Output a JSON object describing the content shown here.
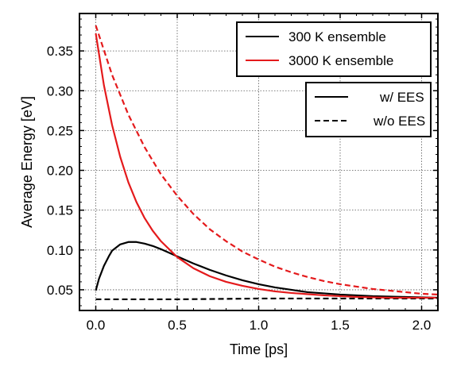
{
  "chart_data": {
    "type": "line",
    "title": "",
    "xlabel": "Time [ps]",
    "ylabel": "Average Energy [eV]",
    "xlim": [
      -0.1,
      2.1
    ],
    "ylim": [
      0.024,
      0.397
    ],
    "xticks": [
      0.0,
      0.5,
      1.0,
      1.5,
      2.0
    ],
    "xtick_labels": [
      "0.0",
      "0.5",
      "1.0",
      "1.5",
      "2.0"
    ],
    "yticks": [
      0.05,
      0.1,
      0.15,
      0.2,
      0.25,
      0.3,
      0.35
    ],
    "ytick_labels": [
      "0.05",
      "0.10",
      "0.15",
      "0.20",
      "0.25",
      "0.30",
      "0.35"
    ],
    "grid": true,
    "grid_style": "dotted",
    "legends": [
      {
        "placement": "top-right",
        "entries": [
          {
            "label": "300 K ensemble",
            "color": "#000000",
            "dash": "solid"
          },
          {
            "label": "3000 K ensemble",
            "color": "#e41a1c",
            "dash": "solid"
          }
        ]
      },
      {
        "placement": "upper-right",
        "entries": [
          {
            "label": "w/ EES",
            "color": "#000000",
            "dash": "solid"
          },
          {
            "label": "w/o EES",
            "color": "#000000",
            "dash": "dashed"
          }
        ]
      }
    ],
    "series": [
      {
        "ensemble": "300 K ensemble",
        "variant": "w/ EES",
        "color": "#000000",
        "dash": "solid",
        "x": [
          0.0,
          0.02,
          0.05,
          0.08,
          0.1,
          0.15,
          0.2,
          0.25,
          0.3,
          0.35,
          0.4,
          0.5,
          0.6,
          0.7,
          0.8,
          0.9,
          1.0,
          1.1,
          1.2,
          1.3,
          1.5,
          1.7,
          1.9,
          2.1
        ],
        "y": [
          0.049,
          0.064,
          0.08,
          0.092,
          0.099,
          0.107,
          0.11,
          0.11,
          0.108,
          0.105,
          0.101,
          0.092,
          0.083,
          0.075,
          0.068,
          0.062,
          0.057,
          0.053,
          0.05,
          0.047,
          0.044,
          0.042,
          0.041,
          0.04
        ]
      },
      {
        "ensemble": "300 K ensemble",
        "variant": "w/o EES",
        "color": "#000000",
        "dash": "dashed",
        "x": [
          0.0,
          0.5,
          1.0,
          1.5,
          2.1
        ],
        "y": [
          0.038,
          0.038,
          0.039,
          0.039,
          0.039
        ]
      },
      {
        "ensemble": "3000 K ensemble",
        "variant": "w/ EES",
        "color": "#e41a1c",
        "dash": "solid",
        "x": [
          0.0,
          0.05,
          0.1,
          0.15,
          0.2,
          0.25,
          0.3,
          0.35,
          0.4,
          0.5,
          0.6,
          0.7,
          0.8,
          0.9,
          1.0,
          1.1,
          1.2,
          1.4,
          1.6,
          1.8,
          2.1
        ],
        "y": [
          0.372,
          0.307,
          0.257,
          0.217,
          0.185,
          0.16,
          0.14,
          0.124,
          0.111,
          0.091,
          0.077,
          0.067,
          0.06,
          0.055,
          0.051,
          0.048,
          0.046,
          0.043,
          0.041,
          0.04,
          0.04
        ]
      },
      {
        "ensemble": "3000 K ensemble",
        "variant": "w/o EES",
        "color": "#e41a1c",
        "dash": "dashed",
        "x": [
          0.0,
          0.1,
          0.2,
          0.3,
          0.4,
          0.5,
          0.6,
          0.7,
          0.8,
          0.9,
          1.0,
          1.1,
          1.2,
          1.3,
          1.4,
          1.5,
          1.6,
          1.7,
          1.8,
          1.9,
          2.0,
          2.1
        ],
        "y": [
          0.382,
          0.32,
          0.27,
          0.229,
          0.195,
          0.168,
          0.145,
          0.126,
          0.111,
          0.098,
          0.088,
          0.079,
          0.072,
          0.066,
          0.061,
          0.057,
          0.054,
          0.051,
          0.049,
          0.047,
          0.045,
          0.044
        ]
      }
    ]
  }
}
